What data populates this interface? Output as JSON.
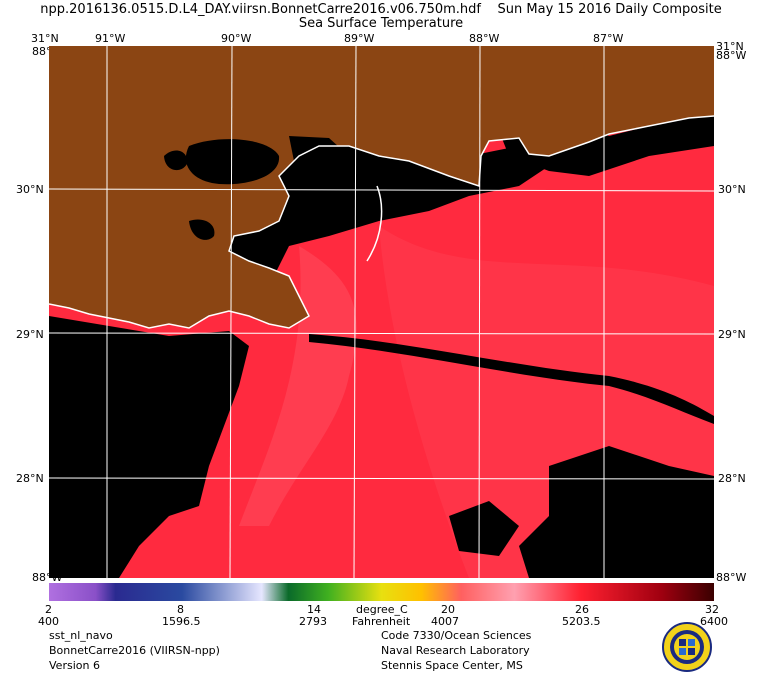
{
  "header": {
    "filename": "npp.2016136.0515.D.L4_DAY.viirsn.BonnetCarre2016.v06.750m.hdf",
    "date": "Sun May 15 2016 Daily Composite",
    "product": "Sea Surface Temperature"
  },
  "map": {
    "lon_labels": [
      "91°W",
      "90°W",
      "89°W",
      "88°W",
      "87°W"
    ],
    "lat_labels": [
      "30°N",
      "29°N",
      "28°N"
    ],
    "corner_top_left": "31°N",
    "corner_top_right": "31°N",
    "corner_bottom_left": "88°W",
    "corner_bottom_right": "88°W",
    "colors": {
      "land": "#8B4513",
      "cloud": "#000000",
      "sst": "#ff2a3f",
      "coast": "#ffffff",
      "grid": "#ffffff"
    }
  },
  "colorbar": {
    "unit_c": "degree_C",
    "unit_f": "Fahrenheit",
    "ticks_c": [
      "2",
      "8",
      "14",
      "20",
      "26",
      "32"
    ],
    "ticks_f": [
      "400",
      "1596.5",
      "2793",
      "4007",
      "5203.5",
      "6400"
    ]
  },
  "footer": {
    "left": [
      "sst_nl_navo",
      "BonnetCarre2016 (VIIRSN-npp)",
      "Version 6"
    ],
    "right": [
      "Code 7330/Ocean Sciences",
      "Naval Research Laboratory",
      "Stennis Space Center, MS"
    ]
  }
}
